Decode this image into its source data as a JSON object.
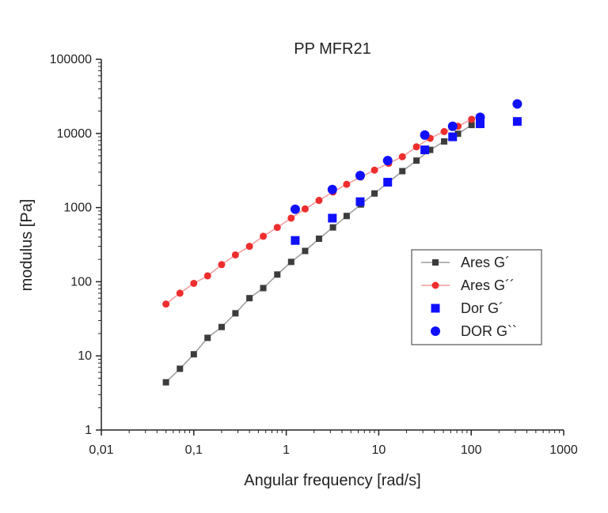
{
  "chart_data": {
    "type": "scatter",
    "title": "PP MFR21",
    "xlabel": "Angular frequency [rad/s]",
    "ylabel": "modulus [Pa]",
    "xscale": "log",
    "yscale": "log",
    "xlim": [
      0.01,
      1000
    ],
    "ylim": [
      1,
      100000
    ],
    "x_ticks": [
      0.01,
      0.1,
      1,
      10,
      100,
      1000
    ],
    "x_tick_labels": [
      "0,01",
      "0,1",
      "1",
      "10",
      "100",
      "1000"
    ],
    "y_ticks": [
      1,
      10,
      100,
      1000,
      10000,
      100000
    ],
    "y_tick_labels": [
      "1",
      "10",
      "100",
      "1000",
      "10000",
      "100000"
    ],
    "legend_position": "center-right",
    "series": [
      {
        "name": "Ares G´",
        "marker": "square",
        "line": true,
        "color": "#3c3c3c",
        "line_color": "#9a9a9a",
        "x": [
          0.05,
          0.0708,
          0.1,
          0.141,
          0.2,
          0.282,
          0.4,
          0.564,
          0.8,
          1.13,
          1.6,
          2.26,
          3.2,
          4.5,
          6.4,
          9.0,
          12.8,
          18.0,
          25.6,
          36.0,
          51.0,
          72.0,
          101.0
        ],
        "y": [
          4.4,
          6.7,
          10.5,
          17.5,
          24.5,
          37.5,
          60,
          82,
          125,
          185,
          260,
          380,
          540,
          770,
          1100,
          1550,
          2200,
          3100,
          4300,
          6000,
          7800,
          9900,
          13000
        ]
      },
      {
        "name": "Ares G´´",
        "marker": "circle",
        "line": true,
        "color": "#ee2d2d",
        "line_color": "#f39a9a",
        "x": [
          0.05,
          0.0708,
          0.1,
          0.141,
          0.2,
          0.282,
          0.4,
          0.564,
          0.8,
          1.13,
          1.6,
          2.26,
          3.2,
          4.5,
          6.4,
          9.0,
          12.8,
          18.0,
          25.6,
          36.0,
          51.0,
          72.0,
          101.0,
          125.0
        ],
        "y": [
          50,
          70,
          95,
          120,
          170,
          230,
          300,
          410,
          540,
          720,
          960,
          1250,
          1620,
          2060,
          2580,
          3200,
          3950,
          4850,
          6600,
          8600,
          10600,
          12500,
          15500,
          17000
        ]
      },
      {
        "name": "Dor G´",
        "marker": "square",
        "line": false,
        "color": "#1010ff",
        "x": [
          1.25,
          3.15,
          6.3,
          12.5,
          31.5,
          63.0,
          125.0,
          315.0
        ],
        "y": [
          360,
          720,
          1200,
          2200,
          6000,
          9000,
          13500,
          14500
        ]
      },
      {
        "name": "DOR G``",
        "marker": "circle",
        "line": false,
        "color": "#1010ff",
        "x": [
          1.25,
          3.15,
          6.3,
          12.5,
          31.5,
          63.0,
          125.0,
          315.0
        ],
        "y": [
          950,
          1750,
          2700,
          4300,
          9500,
          12500,
          16500,
          25000
        ]
      }
    ]
  }
}
